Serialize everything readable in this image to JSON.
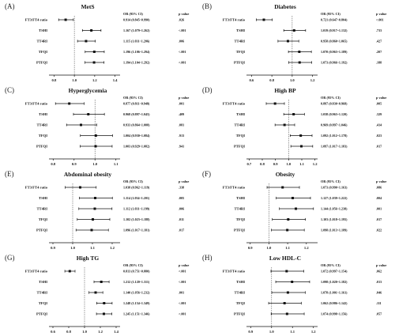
{
  "header": {
    "or_label": "OR (95% CI)",
    "p_label": "p value"
  },
  "chart_data": [
    {
      "type": "forest",
      "letter": "(A)",
      "title": "MetS",
      "xticks": [
        "0.8",
        "1.0",
        "1.2",
        "1.4"
      ],
      "xlim": [
        0.75,
        1.45
      ],
      "refline": 1.0,
      "rows": [
        {
          "label": "FT3/FT4 ratio",
          "or": 0.914,
          "lo": 0.845,
          "hi": 0.99,
          "ci_text": "0.914 (0.845~0.990)",
          "p": ".026"
        },
        {
          "label": "TSHI",
          "or": 1.167,
          "lo": 1.079,
          "hi": 1.262,
          "ci_text": "1.167 (1.079~1.262)",
          "p": "<.001"
        },
        {
          "label": "TT4RI",
          "or": 1.115,
          "lo": 1.031,
          "hi": 1.206,
          "ci_text": "1.115 (1.031~1.206)",
          "p": ".006"
        },
        {
          "label": "TFQI",
          "or": 1.196,
          "lo": 1.106,
          "hi": 1.294,
          "ci_text": "1.196 (1.106~1.294)",
          "p": "<.001"
        },
        {
          "label": "PTFQI",
          "or": 1.194,
          "lo": 1.104,
          "hi": 1.292,
          "ci_text": "1.194 (1.104~1.292)",
          "p": "<.001"
        }
      ]
    },
    {
      "type": "forest",
      "letter": "(B)",
      "title": "Diabetes",
      "xticks": [
        "0.6",
        "0.8",
        "1.0",
        "1.2"
      ],
      "xlim": [
        0.55,
        1.25
      ],
      "refline": 1.0,
      "rows": [
        {
          "label": "FT3/FT4 ratio",
          "or": 0.721,
          "lo": 0.647,
          "hi": 0.804,
          "ci_text": "0.721 (0.647~0.804)",
          "p": "<.001"
        },
        {
          "label": "TSHI",
          "or": 1.019,
          "lo": 0.917,
          "hi": 1.132,
          "ci_text": "1.019 (0.917~1.132)",
          "p": ".733"
        },
        {
          "label": "TT4RI",
          "or": 0.958,
          "or_fix": true,
          "lo": 0.86,
          "hi": 1.065,
          "ci_text": "0.958 (0.860~1.065)",
          "p": ".427"
        },
        {
          "label": "TFQI",
          "or": 1.07,
          "lo": 0.963,
          "hi": 1.189,
          "ci_text": "1.070 (0.963~1.189)",
          "p": ".207"
        },
        {
          "label": "PTFQI",
          "or": 1.073,
          "lo": 0.966,
          "hi": 1.192,
          "ci_text": "1.073 (0.966~1.192)",
          "p": ".188"
        }
      ]
    },
    {
      "type": "forest",
      "letter": "(C)",
      "title": "Hyperglycemia",
      "xticks": [
        "0.8",
        "0.9",
        "1.0",
        "1.1"
      ],
      "xlim": [
        0.78,
        1.12
      ],
      "refline": 1.0,
      "rows": [
        {
          "label": "FT3/FT4 ratio",
          "or": 0.877,
          "lo": 0.811,
          "hi": 0.948,
          "ci_text": "0.877 (0.811~0.948)",
          "p": ".001"
        },
        {
          "label": "TSHI",
          "or": 0.968,
          "lo": 0.897,
          "hi": 1.045,
          "ci_text": "0.968 (0.897~1.045)",
          "p": ".409"
        },
        {
          "label": "TT4RI",
          "or": 0.933,
          "lo": 0.864,
          "hi": 1.008,
          "ci_text": "0.933 (0.864~1.008)",
          "p": ".081"
        },
        {
          "label": "TFQI",
          "or": 1.004,
          "lo": 0.93,
          "hi": 1.084,
          "ci_text": "1.004 (0.930~1.084)",
          "p": ".913"
        },
        {
          "label": "PTFQI",
          "or": 1.003,
          "lo": 0.929,
          "hi": 1.082,
          "ci_text": "1.003 (0.929~1.082)",
          "p": ".941"
        }
      ]
    },
    {
      "type": "forest",
      "letter": "(D)",
      "title": "High BP",
      "xticks": [
        "0.7",
        "0.8",
        "0.9",
        "1.0",
        "1.1",
        "1.2"
      ],
      "xlim": [
        0.68,
        1.22
      ],
      "refline": 1.0,
      "rows": [
        {
          "label": "FT3/FT4 ratio",
          "or": 0.897,
          "lo": 0.83,
          "hi": 0.968,
          "ci_text": "0.897 (0.830~0.968)",
          "p": ".005"
        },
        {
          "label": "TSHI",
          "or": 1.038,
          "lo": 0.963,
          "hi": 1.12,
          "ci_text": "1.038 (0.963~1.120)",
          "p": ".329"
        },
        {
          "label": "TT4RI",
          "or": 0.969,
          "lo": 0.897,
          "hi": 1.046,
          "ci_text": "0.969 (0.897~1.046)",
          "p": ".414"
        },
        {
          "label": "TFQI",
          "or": 1.092,
          "lo": 1.012,
          "hi": 1.178,
          "ci_text": "1.092 (1.012~1.178)",
          "p": ".023"
        },
        {
          "label": "PTFQI",
          "or": 1.097,
          "lo": 1.017,
          "hi": 1.183,
          "ci_text": "1.097 (1.017~1.183)",
          "p": ".017"
        }
      ]
    },
    {
      "type": "forest",
      "letter": "(E)",
      "title": "Abdominal obesity",
      "xticks": [
        "0.9",
        "1.0",
        "1.1",
        "1.2"
      ],
      "xlim": [
        0.88,
        1.24
      ],
      "refline": 1.0,
      "rows": [
        {
          "label": "FT3/FT4 ratio",
          "or": 1.038,
          "lo": 0.962,
          "hi": 1.119,
          "ci_text": "1.038 (0.962~1.119)",
          "p": ".338"
        },
        {
          "label": "TSHI",
          "or": 1.114,
          "lo": 1.034,
          "hi": 1.201,
          "ci_text": "1.114 (1.034~1.201)",
          "p": ".005"
        },
        {
          "label": "TT4RI",
          "or": 1.112,
          "lo": 1.031,
          "hi": 1.199,
          "ci_text": "1.112 (1.031~1.199)",
          "p": ".006"
        },
        {
          "label": "TFQI",
          "or": 1.102,
          "lo": 1.023,
          "hi": 1.188,
          "ci_text": "1.102 (1.023~1.188)",
          "p": ".011"
        },
        {
          "label": "PTFQI",
          "or": 1.096,
          "lo": 1.017,
          "hi": 1.181,
          "ci_text": "1.096 (1.017~1.181)",
          "p": ".017"
        }
      ]
    },
    {
      "type": "forest",
      "letter": "(F)",
      "title": "Obesity",
      "xticks": [
        "0.9",
        "1.0",
        "1.1",
        "1.2"
      ],
      "xlim": [
        0.88,
        1.26
      ],
      "refline": 1.0,
      "rows": [
        {
          "label": "FT3/FT4 ratio",
          "or": 1.073,
          "lo": 0.99,
          "hi": 1.163,
          "ci_text": "1.073 (0.990~1.163)",
          "p": ".086"
        },
        {
          "label": "TSHI",
          "or": 1.127,
          "lo": 1.039,
          "hi": 1.222,
          "ci_text": "1.127 (1.039~1.222)",
          "p": ".004"
        },
        {
          "label": "TT4RI",
          "or": 1.144,
          "lo": 1.056,
          "hi": 1.238,
          "ci_text": "1.144 (1.056~1.238)",
          "p": ".001"
        },
        {
          "label": "TFQI",
          "or": 1.103,
          "lo": 1.018,
          "hi": 1.195,
          "ci_text": "1.103 (1.018~1.195)",
          "p": ".017"
        },
        {
          "label": "PTFQI",
          "or": 1.098,
          "lo": 1.013,
          "hi": 1.189,
          "ci_text": "1.098 (1.013~1.189)",
          "p": ".022"
        }
      ]
    },
    {
      "type": "forest",
      "letter": "(G)",
      "title": "High TG",
      "xticks": [
        "0.6",
        "0.8",
        "1.0",
        "1.2",
        "1.4"
      ],
      "xlim": [
        0.55,
        1.45
      ],
      "refline": 1.0,
      "rows": [
        {
          "label": "FT3/FT4 ratio",
          "or": 0.813,
          "lo": 0.751,
          "hi": 0.88,
          "ci_text": "0.813 (0.751~0.880)",
          "p": "<.001"
        },
        {
          "label": "TSHI",
          "or": 1.212,
          "lo": 1.12,
          "hi": 1.311,
          "ci_text": "1.212 (1.120~1.311)",
          "p": "<.001"
        },
        {
          "label": "TT4RI",
          "or": 1.14,
          "lo": 1.056,
          "hi": 1.232,
          "ci_text": "1.140 (1.056~1.232)",
          "p": ".001"
        },
        {
          "label": "TFQI",
          "or": 1.248,
          "lo": 1.154,
          "hi": 1.349,
          "ci_text": "1.248 (1.154~1.349)",
          "p": "<.001"
        },
        {
          "label": "PTFQI",
          "or": 1.245,
          "lo": 1.151,
          "hi": 1.346,
          "ci_text": "1.245 (1.151~1.346)",
          "p": "<.001"
        }
      ]
    },
    {
      "type": "forest",
      "letter": "(H)",
      "title": "Low HDL-C",
      "xticks": [
        "0.9",
        "1.0",
        "1.1",
        "1.2"
      ],
      "xlim": [
        0.88,
        1.22
      ],
      "refline": 1.0,
      "rows": [
        {
          "label": "FT3/FT4 ratio",
          "or": 1.072,
          "lo": 0.997,
          "hi": 1.154,
          "ci_text": "1.072 (0.997~1.154)",
          "p": ".062"
        },
        {
          "label": "TSHI",
          "or": 1.098,
          "lo": 1.02,
          "hi": 1.182,
          "ci_text": "1.098 (1.020~1.182)",
          "p": ".013"
        },
        {
          "label": "TT4RI",
          "or": 1.078,
          "lo": 1.001,
          "hi": 1.161,
          "ci_text": "1.078 (1.001~1.161)",
          "p": ".046"
        },
        {
          "label": "TFQI",
          "or": 1.062,
          "lo": 0.986,
          "hi": 1.142,
          "ci_text": "1.062 (0.986~1.142)",
          "p": ".111"
        },
        {
          "label": "PTFQI",
          "or": 1.074,
          "lo": 0.998,
          "hi": 1.156,
          "ci_text": "1.074 (0.998~1.156)",
          "p": ".057"
        }
      ]
    }
  ]
}
